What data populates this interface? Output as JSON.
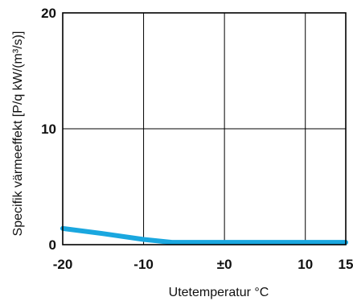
{
  "chart_data": {
    "type": "line",
    "title": "",
    "xlabel": "Utetemperatur °C",
    "ylabel": "Specifik värmeeffekt  [P/q kW/(m³/s)]",
    "xlim": [
      -20,
      15
    ],
    "ylim": [
      0,
      20
    ],
    "x_ticks": [
      {
        "value": -20,
        "label": "-20"
      },
      {
        "value": -10,
        "label": "-10"
      },
      {
        "value": 0,
        "label": "±0"
      },
      {
        "value": 10,
        "label": "10"
      },
      {
        "value": 15,
        "label": "15"
      }
    ],
    "y_ticks": [
      {
        "value": 0,
        "label": "0"
      },
      {
        "value": 10,
        "label": "10"
      },
      {
        "value": 20,
        "label": "20"
      }
    ],
    "grid": true,
    "series": [
      {
        "x": [
          -20,
          -15,
          -10,
          -6.5,
          0,
          5,
          10,
          15
        ],
        "y": [
          1.4,
          0.95,
          0.45,
          0.2,
          0.2,
          0.2,
          0.2,
          0.2
        ],
        "color": "#1aa7df"
      }
    ]
  }
}
